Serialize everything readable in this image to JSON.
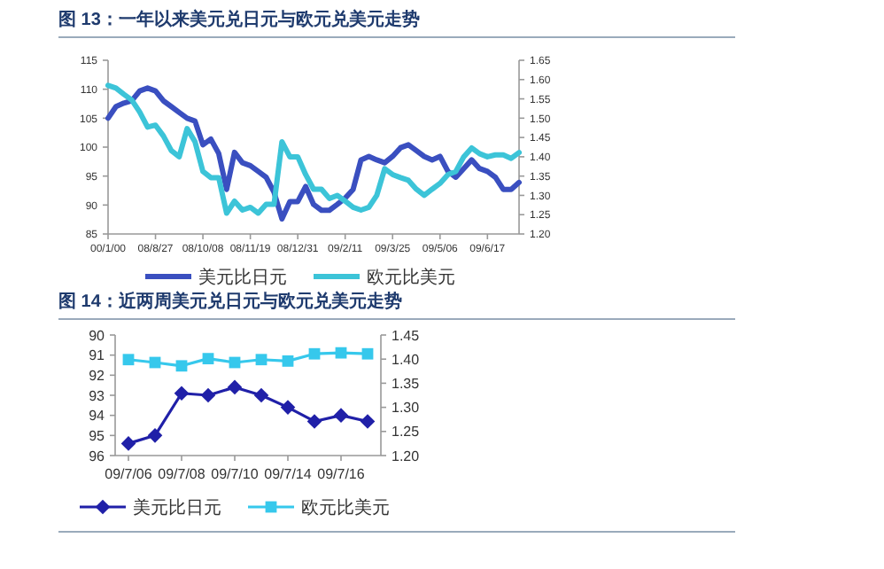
{
  "chart_data": [
    {
      "type": "line",
      "title": "图 13：一年以来美元兑日元与欧元兑美元走势",
      "categories": [
        "00/1/00",
        null,
        null,
        null,
        null,
        null,
        "08/8/27",
        null,
        null,
        null,
        null,
        null,
        "08/10/08",
        null,
        null,
        null,
        null,
        null,
        "08/11/19",
        null,
        null,
        null,
        null,
        null,
        "08/12/31",
        null,
        null,
        null,
        null,
        null,
        "09/2/11",
        null,
        null,
        null,
        null,
        null,
        "09/3/25",
        null,
        null,
        null,
        null,
        null,
        "09/5/06",
        null,
        null,
        null,
        null,
        null,
        "09/6/17",
        null,
        null,
        null,
        null
      ],
      "series": [
        {
          "name": "美元比日元",
          "color": "#3a4fc0",
          "axis": "y",
          "values": [
            105,
            107,
            107.6,
            108,
            109.7,
            110.2,
            109.7,
            108,
            107,
            106,
            105,
            104.5,
            100.4,
            101.4,
            98.9,
            92.7,
            99.1,
            97.3,
            96.8,
            95.8,
            94.8,
            92.2,
            87.6,
            90.6,
            90.6,
            93.2,
            90.1,
            89.1,
            89.1,
            90.1,
            91.2,
            92.7,
            97.8,
            98.4,
            97.8,
            97.3,
            98.4,
            99.9,
            100.4,
            99.4,
            98.4,
            97.8,
            98.4,
            95.8,
            94.8,
            96.3,
            97.8,
            96.3,
            95.8,
            94.8,
            92.7,
            92.7,
            93.9
          ]
        },
        {
          "name": "欧元比美元",
          "color": "#3cc4d8",
          "axis": "y2",
          "values": [
            1.585,
            1.578,
            1.562,
            1.547,
            1.516,
            1.477,
            1.482,
            1.454,
            1.416,
            1.4,
            1.473,
            1.439,
            1.362,
            1.346,
            1.346,
            1.254,
            1.285,
            1.262,
            1.269,
            1.254,
            1.277,
            1.277,
            1.439,
            1.4,
            1.4,
            1.354,
            1.316,
            1.316,
            1.292,
            1.3,
            1.285,
            1.269,
            1.262,
            1.269,
            1.3,
            1.369,
            1.354,
            1.346,
            1.339,
            1.316,
            1.3,
            1.316,
            1.331,
            1.354,
            1.362,
            1.4,
            1.423,
            1.408,
            1.4,
            1.405,
            1.405,
            1.396,
            1.411
          ]
        }
      ],
      "ylim": [
        85,
        115
      ],
      "yticks": [
        85,
        90,
        95,
        100,
        105,
        110,
        115
      ],
      "y2lim": [
        1.2,
        1.65
      ],
      "y2ticks": [
        {
          "value": 1.2,
          "label": "1.20"
        },
        {
          "value": 1.25,
          "label": "1.25"
        },
        {
          "value": 1.3,
          "label": "1.30"
        },
        {
          "value": 1.35,
          "label": "1.35"
        },
        {
          "value": 1.4,
          "label": "1.40"
        },
        {
          "value": 1.45,
          "label": "1.45"
        },
        {
          "value": 1.5,
          "label": "1.50"
        },
        {
          "value": 1.55,
          "label": "1.55"
        },
        {
          "value": 1.6,
          "label": "1.60"
        },
        {
          "value": 1.65,
          "label": "1.65"
        }
      ],
      "legend": "bottom"
    },
    {
      "type": "line",
      "title": "图 14：近两周美元兑日元与欧元兑美元走势",
      "categories": [
        "09/7/06",
        null,
        "09/7/08",
        null,
        "09/7/10",
        null,
        "09/7/14",
        null,
        "09/7/16",
        null
      ],
      "series": [
        {
          "name": "美元比日元",
          "color": "#2020a8",
          "axis": "y",
          "marker": "diamond",
          "values": [
            95.4,
            95.0,
            92.9,
            93.0,
            92.6,
            93.0,
            93.6,
            94.3,
            94.0,
            94.3
          ]
        },
        {
          "name": "欧元比美元",
          "color": "#36c8ec",
          "axis": "y2",
          "marker": "square",
          "values": [
            1.399,
            1.393,
            1.386,
            1.401,
            1.393,
            1.399,
            1.396,
            1.411,
            1.413,
            1.411
          ]
        }
      ],
      "ylim": [
        96,
        90
      ],
      "yticks": [
        90,
        91,
        92,
        93,
        94,
        95,
        96
      ],
      "y2lim": [
        1.2,
        1.45
      ],
      "y2ticks": [
        {
          "value": 1.2,
          "label": "1.20"
        },
        {
          "value": 1.25,
          "label": "1.25"
        },
        {
          "value": 1.3,
          "label": "1.30"
        },
        {
          "value": 1.35,
          "label": "1.35"
        },
        {
          "value": 1.4,
          "label": "1.40"
        },
        {
          "value": 1.45,
          "label": "1.45"
        }
      ],
      "legend": "bottom"
    }
  ]
}
